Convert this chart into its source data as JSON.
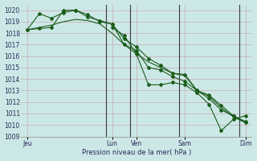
{
  "background_color": "#cce8e6",
  "grid_color": "#c8a8b8",
  "line_color": "#1a5c1a",
  "vline_color": "#3a3a3a",
  "xlabel": "Pression niveau de la mer( hPa )",
  "ylim": [
    1009,
    1020.5
  ],
  "yticks": [
    1009,
    1010,
    1011,
    1012,
    1013,
    1014,
    1015,
    1016,
    1017,
    1018,
    1019,
    1020
  ],
  "xlim": [
    0,
    19
  ],
  "xtick_labels": [
    "Jeu",
    "Lun",
    "Ven",
    "Sam",
    "Dim"
  ],
  "xtick_positions": [
    0.5,
    7.5,
    9.5,
    13.5,
    18.5
  ],
  "vline_positions": [
    7,
    9,
    13,
    18
  ],
  "series": [
    {
      "x": [
        0.5,
        1.5,
        2.5,
        3.5,
        4.5,
        5.5,
        6.5,
        7.5,
        8.5,
        9.5,
        10.5,
        11.5,
        12.5,
        13.5,
        14.5,
        15.5,
        16.5,
        17.5,
        18.5
      ],
      "y": [
        1018.3,
        1018.5,
        1018.7,
        1019.0,
        1019.2,
        1019.1,
        1018.8,
        1018.0,
        1017.0,
        1016.2,
        1015.5,
        1015.0,
        1014.5,
        1014.3,
        1013.0,
        1012.5,
        1011.5,
        1010.7,
        1010.2
      ],
      "style": "-",
      "marker": null,
      "linewidth": 0.8
    },
    {
      "x": [
        0.5,
        1.5,
        2.5,
        3.5,
        4.5,
        5.5,
        6.5,
        7.5,
        8.5,
        9.5,
        10.5,
        11.5,
        12.5,
        13.5,
        14.5,
        15.5,
        16.5,
        17.5,
        18.5
      ],
      "y": [
        1018.3,
        1019.7,
        1019.3,
        1019.8,
        1020.0,
        1019.4,
        1019.1,
        1018.8,
        1017.5,
        1016.8,
        1015.8,
        1015.2,
        1014.5,
        1014.4,
        1013.0,
        1012.6,
        1011.7,
        1010.8,
        1010.3
      ],
      "style": "-",
      "marker": "D",
      "linewidth": 0.8
    },
    {
      "x": [
        0.5,
        1.5,
        2.5,
        3.5,
        4.5,
        5.5,
        6.5,
        7.5,
        8.5,
        9.5,
        10.5,
        11.5,
        12.5,
        13.5,
        14.5,
        15.5,
        16.5,
        17.5,
        18.5
      ],
      "y": [
        1018.3,
        1018.4,
        1018.5,
        1020.0,
        1020.0,
        1019.6,
        1019.0,
        1018.8,
        1017.0,
        1016.5,
        1015.0,
        1014.8,
        1014.2,
        1013.8,
        1013.0,
        1012.3,
        1011.3,
        1010.8,
        1010.2
      ],
      "style": "-",
      "marker": "D",
      "linewidth": 0.8
    },
    {
      "x": [
        7.5,
        8.5,
        9.5,
        10.5,
        11.5,
        12.5,
        13.5,
        14.5,
        15.5,
        16.5,
        17.5,
        18.5
      ],
      "y": [
        1018.5,
        1017.8,
        1016.2,
        1013.5,
        1013.5,
        1013.7,
        1013.5,
        1012.8,
        1011.8,
        1009.5,
        1010.5,
        1010.8
      ],
      "style": "-",
      "marker": "D",
      "linewidth": 0.8
    }
  ]
}
